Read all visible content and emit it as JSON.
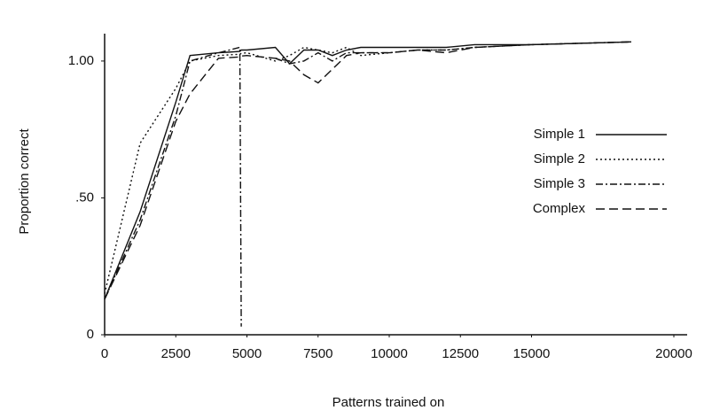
{
  "chart_data": {
    "type": "line",
    "xlabel": "Patterns trained on",
    "ylabel": "Proportion correct",
    "x": [
      0,
      1250,
      2500,
      3000,
      4000,
      4750,
      4800,
      5000,
      6000,
      6500,
      7000,
      7500,
      8000,
      8500,
      9000,
      10000,
      11000,
      12000,
      13000,
      15000,
      18500
    ],
    "series": [
      {
        "name": "Simple 1",
        "color": "#111111",
        "dash": "none",
        "values": [
          0.13,
          0.45,
          0.85,
          1.02,
          1.03,
          1.035,
          1.04,
          1.04,
          1.05,
          0.99,
          1.04,
          1.04,
          1.02,
          1.04,
          1.05,
          1.05,
          1.05,
          1.05,
          1.06,
          1.06,
          1.07
        ]
      },
      {
        "name": "Simple 2",
        "color": "#111111",
        "dash": "2 3",
        "values": [
          0.15,
          0.7,
          0.9,
          1.0,
          1.02,
          1.025,
          1.028,
          1.03,
          1.0,
          1.02,
          1.05,
          1.04,
          1.03,
          1.05,
          1.02,
          1.03,
          1.04,
          1.04,
          1.05,
          1.06,
          1.07
        ]
      },
      {
        "name": "Simple 3",
        "color": "#111111",
        "dash": "8 3 2 3",
        "values": [
          0.13,
          0.42,
          0.8,
          1.0,
          1.03,
          1.05,
          0.03,
          null,
          1.01,
          0.99,
          1.0,
          1.03,
          1.0,
          1.03,
          1.03,
          1.03,
          1.04,
          1.04,
          1.05,
          1.06,
          1.07
        ]
      },
      {
        "name": "Complex",
        "color": "#111111",
        "dash": "10 5",
        "values": [
          0.13,
          0.4,
          0.78,
          0.88,
          1.01,
          1.015,
          1.018,
          1.02,
          1.01,
          1.0,
          0.95,
          0.92,
          0.97,
          1.02,
          1.03,
          1.03,
          1.04,
          1.03,
          1.05,
          1.06,
          1.07
        ]
      }
    ],
    "xlim": [
      0,
      20000
    ],
    "xticks": [
      0,
      2500,
      5000,
      7500,
      10000,
      12500,
      15000,
      20000
    ],
    "ylim": [
      0,
      1.1
    ],
    "yticks": [
      0,
      {
        "value": 0.5,
        "label": ".50"
      },
      {
        "value": 1,
        "label": "1.00"
      }
    ],
    "legend": "right",
    "grid": false
  }
}
